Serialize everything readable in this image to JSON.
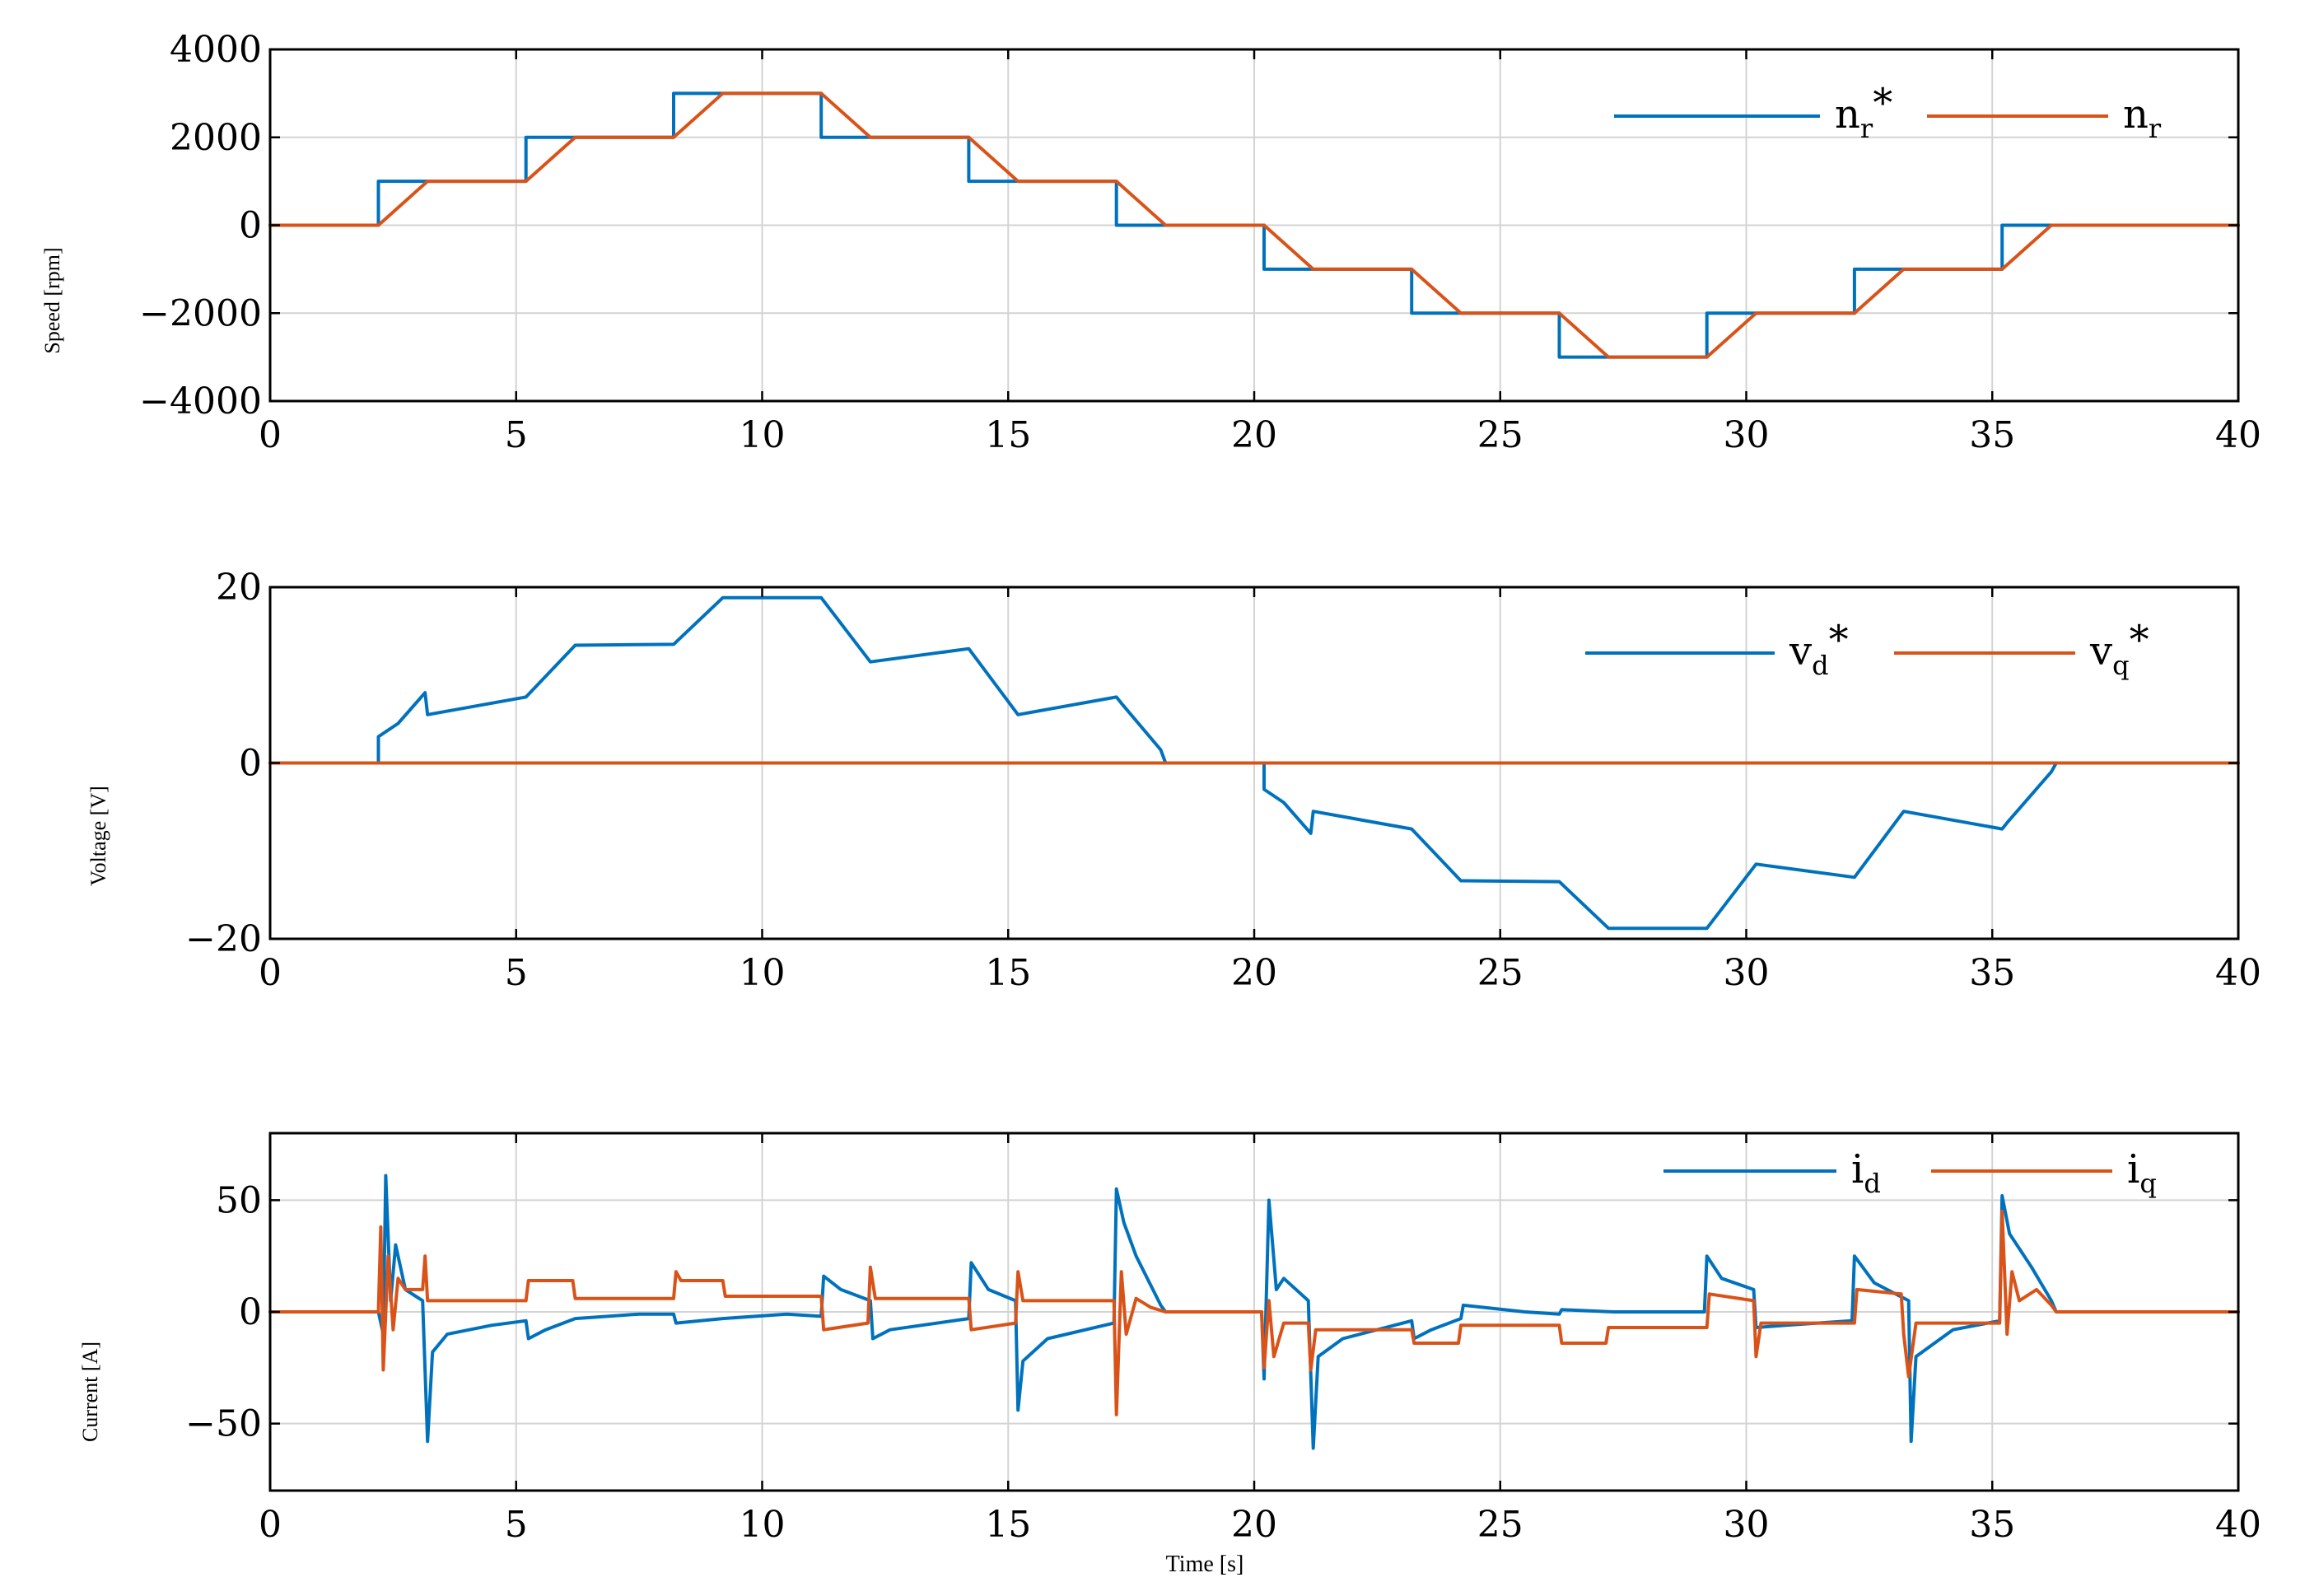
{
  "figure": {
    "xlabel": "Time [s]"
  },
  "colors": {
    "blue": "#0072BD",
    "orange": "#D95319"
  },
  "chart_data": [
    {
      "type": "line",
      "id": "speed",
      "ylabel": "Speed [rpm]",
      "xlim": [
        0,
        40
      ],
      "ylim": [
        -4000,
        4000
      ],
      "xticks": [
        0,
        5,
        10,
        15,
        20,
        25,
        30,
        35,
        40
      ],
      "yticks": [
        -4000,
        -2000,
        0,
        2000,
        4000
      ],
      "ytick_labels": [
        "−4000",
        "−2000",
        "0",
        "2000",
        "4000"
      ],
      "grid": true,
      "legend_position": "top-right",
      "series": [
        {
          "name": "n_r*",
          "legend_main": "n",
          "legend_sub": "r",
          "legend_sup": "*",
          "color": "#0072BD",
          "points": [
            [
              0,
              0
            ],
            [
              2.2,
              0
            ],
            [
              2.2,
              1000
            ],
            [
              5.2,
              1000
            ],
            [
              5.2,
              2000
            ],
            [
              8.2,
              2000
            ],
            [
              8.2,
              3000
            ],
            [
              11.2,
              3000
            ],
            [
              11.2,
              2000
            ],
            [
              14.2,
              2000
            ],
            [
              14.2,
              1000
            ],
            [
              17.2,
              1000
            ],
            [
              17.2,
              0
            ],
            [
              20.2,
              0
            ],
            [
              20.2,
              -1000
            ],
            [
              23.2,
              -1000
            ],
            [
              23.2,
              -2000
            ],
            [
              26.2,
              -2000
            ],
            [
              26.2,
              -3000
            ],
            [
              29.2,
              -3000
            ],
            [
              29.2,
              -2000
            ],
            [
              32.2,
              -2000
            ],
            [
              32.2,
              -1000
            ],
            [
              35.2,
              -1000
            ],
            [
              35.2,
              0
            ],
            [
              40,
              0
            ]
          ]
        },
        {
          "name": "n_r",
          "legend_main": "n",
          "legend_sub": "r",
          "legend_sup": "",
          "color": "#D95319",
          "points": [
            [
              0,
              0
            ],
            [
              2.2,
              0
            ],
            [
              3.2,
              1000
            ],
            [
              5.2,
              1000
            ],
            [
              6.2,
              2000
            ],
            [
              8.2,
              2000
            ],
            [
              9.2,
              3000
            ],
            [
              11.2,
              3000
            ],
            [
              12.2,
              2000
            ],
            [
              14.2,
              2000
            ],
            [
              15.2,
              1000
            ],
            [
              17.2,
              1000
            ],
            [
              18.2,
              0
            ],
            [
              20.2,
              0
            ],
            [
              21.2,
              -1000
            ],
            [
              23.2,
              -1000
            ],
            [
              24.2,
              -2000
            ],
            [
              26.2,
              -2000
            ],
            [
              27.2,
              -3000
            ],
            [
              29.2,
              -3000
            ],
            [
              30.2,
              -2000
            ],
            [
              32.2,
              -2000
            ],
            [
              33.2,
              -1000
            ],
            [
              35.2,
              -1000
            ],
            [
              36.2,
              0
            ],
            [
              40,
              0
            ]
          ]
        }
      ]
    },
    {
      "type": "line",
      "id": "voltage",
      "ylabel": "Voltage [V]",
      "xlim": [
        0,
        40
      ],
      "ylim": [
        -20,
        20
      ],
      "xticks": [
        0,
        5,
        10,
        15,
        20,
        25,
        30,
        35,
        40
      ],
      "yticks": [
        -20,
        0,
        20
      ],
      "ytick_labels": [
        "−20",
        "0",
        "20"
      ],
      "grid": true,
      "legend_position": "top-right",
      "series": [
        {
          "name": "v_d*",
          "legend_main": "v",
          "legend_sub": "d",
          "legend_sup": "*",
          "color": "#0072BD",
          "points": [
            [
              0,
              0
            ],
            [
              2.2,
              0
            ],
            [
              2.2,
              3
            ],
            [
              2.6,
              4.5
            ],
            [
              3.15,
              8
            ],
            [
              3.2,
              5.5
            ],
            [
              5.2,
              7.5
            ],
            [
              6.2,
              13.4
            ],
            [
              8.2,
              13.5
            ],
            [
              9.2,
              18.8
            ],
            [
              11.2,
              18.8
            ],
            [
              12.2,
              11.5
            ],
            [
              14.2,
              13
            ],
            [
              15.2,
              5.5
            ],
            [
              17.2,
              7.5
            ],
            [
              17.3,
              6.8
            ],
            [
              18.1,
              1.5
            ],
            [
              18.2,
              0
            ],
            [
              20.2,
              0
            ],
            [
              20.2,
              -3
            ],
            [
              20.6,
              -4.5
            ],
            [
              21.15,
              -8
            ],
            [
              21.2,
              -5.5
            ],
            [
              23.2,
              -7.5
            ],
            [
              24.2,
              -13.4
            ],
            [
              26.2,
              -13.5
            ],
            [
              27.2,
              -18.8
            ],
            [
              29.2,
              -18.8
            ],
            [
              30.2,
              -11.5
            ],
            [
              32.2,
              -13
            ],
            [
              33.2,
              -5.5
            ],
            [
              35.2,
              -7.5
            ],
            [
              35.3,
              -6.8
            ],
            [
              36.2,
              -1
            ],
            [
              36.3,
              0
            ]
          ]
        },
        {
          "name": "v_q*",
          "legend_main": "v",
          "legend_sub": "q",
          "legend_sup": "*",
          "color": "#D95319",
          "points": [
            [
              0,
              0
            ],
            [
              40,
              0
            ]
          ]
        }
      ]
    },
    {
      "type": "line",
      "id": "current",
      "ylabel": "Current [A]",
      "xlim": [
        0,
        40
      ],
      "ylim": [
        -80,
        80
      ],
      "xticks": [
        0,
        5,
        10,
        15,
        20,
        25,
        30,
        35,
        40
      ],
      "yticks": [
        -50,
        0,
        50
      ],
      "ytick_labels": [
        "−50",
        "0",
        "50"
      ],
      "grid": true,
      "legend_position": "top-right",
      "series": [
        {
          "name": "i_d",
          "legend_main": "i",
          "legend_sub": "d",
          "legend_sup": "",
          "color": "#0072BD",
          "points": [
            [
              0,
              0
            ],
            [
              2.2,
              0
            ],
            [
              2.3,
              -10
            ],
            [
              2.35,
              61
            ],
            [
              2.45,
              5
            ],
            [
              2.55,
              30
            ],
            [
              2.75,
              10
            ],
            [
              3.1,
              5
            ],
            [
              3.2,
              -58
            ],
            [
              3.3,
              -18
            ],
            [
              3.6,
              -10
            ],
            [
              4.5,
              -6
            ],
            [
              5.2,
              -4
            ],
            [
              5.25,
              -12
            ],
            [
              5.6,
              -8
            ],
            [
              6.2,
              -3
            ],
            [
              7.5,
              -1
            ],
            [
              8.2,
              -1
            ],
            [
              8.25,
              -5
            ],
            [
              9.2,
              -3
            ],
            [
              10.5,
              -1
            ],
            [
              11.2,
              -2
            ],
            [
              11.25,
              16
            ],
            [
              11.6,
              10
            ],
            [
              12.2,
              5
            ],
            [
              12.25,
              -12
            ],
            [
              12.6,
              -8
            ],
            [
              14.2,
              -3
            ],
            [
              14.25,
              22
            ],
            [
              14.6,
              10
            ],
            [
              15.15,
              5
            ],
            [
              15.2,
              -44
            ],
            [
              15.3,
              -22
            ],
            [
              15.8,
              -12
            ],
            [
              17.15,
              -5
            ],
            [
              17.2,
              55
            ],
            [
              17.35,
              40
            ],
            [
              17.6,
              25
            ],
            [
              18.1,
              3
            ],
            [
              18.2,
              0
            ],
            [
              20.15,
              0
            ],
            [
              20.2,
              -30
            ],
            [
              20.3,
              50
            ],
            [
              20.45,
              10
            ],
            [
              20.6,
              15
            ],
            [
              21.1,
              5
            ],
            [
              21.2,
              -61
            ],
            [
              21.3,
              -20
            ],
            [
              21.8,
              -12
            ],
            [
              23.2,
              -4
            ],
            [
              23.25,
              -12
            ],
            [
              23.6,
              -8
            ],
            [
              24.2,
              -3
            ],
            [
              24.25,
              3
            ],
            [
              25.5,
              0
            ],
            [
              26.2,
              -1
            ],
            [
              26.25,
              1
            ],
            [
              27.3,
              0
            ],
            [
              28.5,
              0
            ],
            [
              29.15,
              0
            ],
            [
              29.2,
              25
            ],
            [
              29.5,
              15
            ],
            [
              30.15,
              10
            ],
            [
              30.2,
              -7
            ],
            [
              30.8,
              -6
            ],
            [
              32.15,
              -4
            ],
            [
              32.2,
              25
            ],
            [
              32.6,
              13
            ],
            [
              33.3,
              5
            ],
            [
              33.35,
              -58
            ],
            [
              33.45,
              -20
            ],
            [
              34.2,
              -8
            ],
            [
              35.15,
              -4
            ],
            [
              35.2,
              52
            ],
            [
              35.35,
              35
            ],
            [
              35.8,
              20
            ],
            [
              36.2,
              5
            ],
            [
              36.3,
              0
            ],
            [
              40,
              0
            ]
          ]
        },
        {
          "name": "i_q",
          "legend_main": "i",
          "legend_sub": "q",
          "legend_sup": "",
          "color": "#D95319",
          "points": [
            [
              0,
              0
            ],
            [
              2.2,
              0
            ],
            [
              2.25,
              38
            ],
            [
              2.3,
              -26
            ],
            [
              2.4,
              25
            ],
            [
              2.5,
              -8
            ],
            [
              2.6,
              15
            ],
            [
              2.75,
              10
            ],
            [
              3.1,
              10
            ],
            [
              3.15,
              25
            ],
            [
              3.2,
              5
            ],
            [
              5.2,
              5
            ],
            [
              5.25,
              14
            ],
            [
              6.15,
              14
            ],
            [
              6.2,
              6
            ],
            [
              8.2,
              6
            ],
            [
              8.25,
              18
            ],
            [
              8.35,
              14
            ],
            [
              9.2,
              14
            ],
            [
              9.25,
              7
            ],
            [
              11.2,
              7
            ],
            [
              11.25,
              -8
            ],
            [
              12.15,
              -5
            ],
            [
              12.2,
              20
            ],
            [
              12.3,
              6
            ],
            [
              14.2,
              6
            ],
            [
              14.25,
              -8
            ],
            [
              15.15,
              -5
            ],
            [
              15.2,
              18
            ],
            [
              15.3,
              5
            ],
            [
              17.15,
              5
            ],
            [
              17.2,
              -46
            ],
            [
              17.3,
              18
            ],
            [
              17.4,
              -10
            ],
            [
              17.6,
              6
            ],
            [
              17.9,
              2
            ],
            [
              18.2,
              0
            ],
            [
              20.15,
              0
            ],
            [
              20.2,
              -25
            ],
            [
              20.3,
              5
            ],
            [
              20.4,
              -20
            ],
            [
              20.6,
              -5
            ],
            [
              21.1,
              -5
            ],
            [
              21.15,
              -26
            ],
            [
              21.25,
              -8
            ],
            [
              23.2,
              -8
            ],
            [
              23.25,
              -14
            ],
            [
              24.15,
              -14
            ],
            [
              24.2,
              -6
            ],
            [
              26.2,
              -6
            ],
            [
              26.25,
              -14
            ],
            [
              27.15,
              -14
            ],
            [
              27.2,
              -7
            ],
            [
              29.2,
              -7
            ],
            [
              29.25,
              8
            ],
            [
              30.15,
              5
            ],
            [
              30.2,
              -20
            ],
            [
              30.3,
              -5
            ],
            [
              32.2,
              -5
            ],
            [
              32.25,
              10
            ],
            [
              33.15,
              8
            ],
            [
              33.2,
              -10
            ],
            [
              33.3,
              -29
            ],
            [
              33.45,
              -5
            ],
            [
              35.15,
              -5
            ],
            [
              35.2,
              45
            ],
            [
              35.3,
              -10
            ],
            [
              35.4,
              18
            ],
            [
              35.55,
              5
            ],
            [
              35.9,
              10
            ],
            [
              36.2,
              3
            ],
            [
              36.3,
              0
            ],
            [
              40,
              0
            ]
          ]
        }
      ]
    }
  ]
}
